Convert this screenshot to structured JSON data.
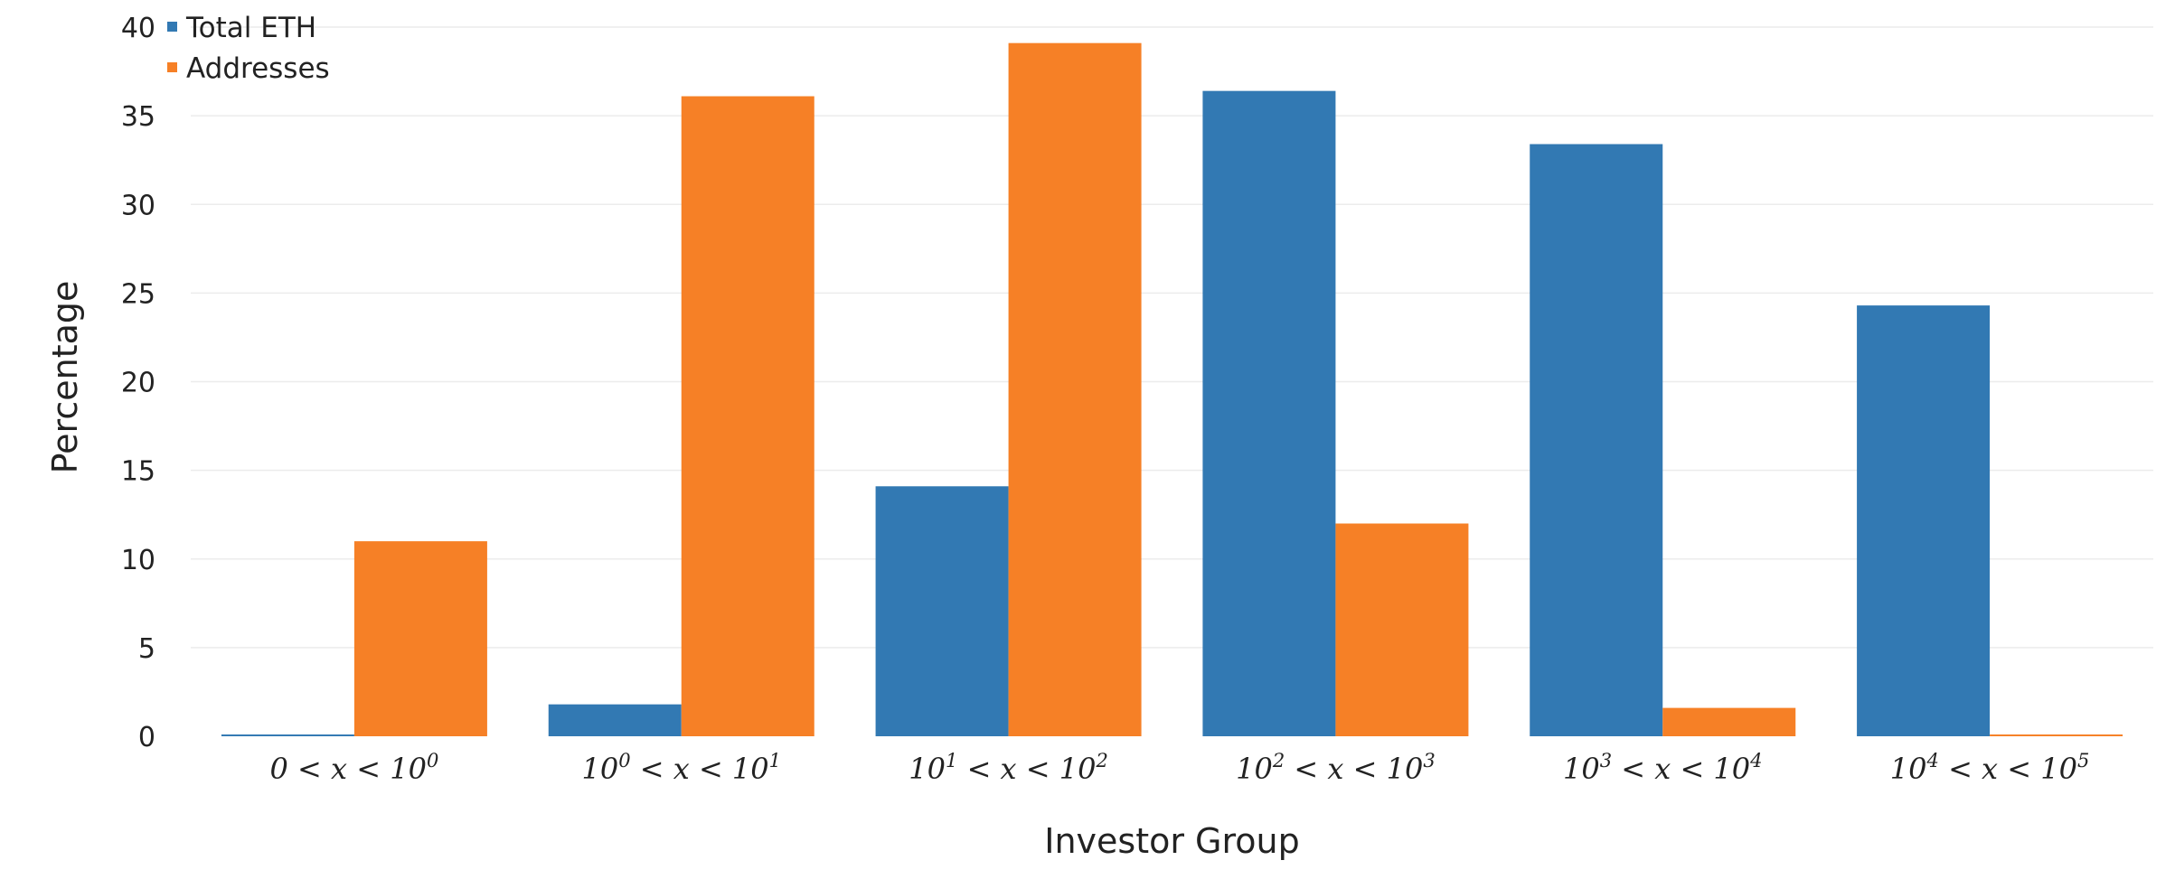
{
  "chart_data": {
    "type": "bar",
    "categories": [
      {
        "parts": [
          {
            "t": "0 < x < 10",
            "sup": false
          },
          {
            "t": "0",
            "sup": true
          }
        ]
      },
      {
        "parts": [
          {
            "t": "10",
            "sup": false
          },
          {
            "t": "0",
            "sup": true
          },
          {
            "t": " < x < 10",
            "sup": false
          },
          {
            "t": "1",
            "sup": true
          }
        ]
      },
      {
        "parts": [
          {
            "t": "10",
            "sup": false
          },
          {
            "t": "1",
            "sup": true
          },
          {
            "t": " < x < 10",
            "sup": false
          },
          {
            "t": "2",
            "sup": true
          }
        ]
      },
      {
        "parts": [
          {
            "t": "10",
            "sup": false
          },
          {
            "t": "2",
            "sup": true
          },
          {
            "t": " < x < 10",
            "sup": false
          },
          {
            "t": "3",
            "sup": true
          }
        ]
      },
      {
        "parts": [
          {
            "t": "10",
            "sup": false
          },
          {
            "t": "3",
            "sup": true
          },
          {
            "t": " < x < 10",
            "sup": false
          },
          {
            "t": "4",
            "sup": true
          }
        ]
      },
      {
        "parts": [
          {
            "t": "10",
            "sup": false
          },
          {
            "t": "4",
            "sup": true
          },
          {
            "t": " < x < 10",
            "sup": false
          },
          {
            "t": "5",
            "sup": true
          }
        ]
      }
    ],
    "series": [
      {
        "name": "Total ETH",
        "color": "#3279b3",
        "values": [
          0.1,
          1.8,
          14.1,
          36.4,
          33.4,
          24.3
        ]
      },
      {
        "name": "Addresses",
        "color": "#f68026",
        "values": [
          11.0,
          36.1,
          39.1,
          12.0,
          1.6,
          0.1
        ]
      }
    ],
    "xlabel": "Investor Group",
    "ylabel": "Percentage",
    "ylim": [
      0,
      40
    ],
    "yticks": [
      0,
      5,
      10,
      15,
      20,
      25,
      30,
      35,
      40
    ],
    "grid": true,
    "legend_position": "top-left"
  }
}
